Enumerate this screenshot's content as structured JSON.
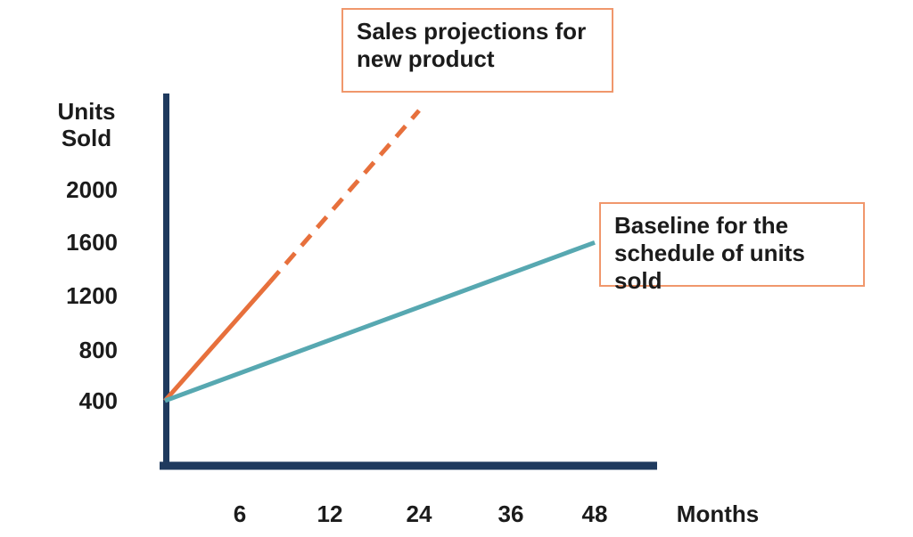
{
  "chart_data": {
    "type": "line",
    "title": "",
    "xlabel": "Months",
    "ylabel": "Units Sold",
    "x_tick_labels": [
      "6",
      "12",
      "24",
      "36",
      "48"
    ],
    "y_tick_labels": [
      "2000",
      "1600",
      "1200",
      "800",
      "400"
    ],
    "xlim_months": [
      0,
      52
    ],
    "ylim_units": [
      0,
      2700
    ],
    "grid": false,
    "legend": "none (labeled via callout boxes)",
    "x_axis_note": "tick values 6,12,24,36,48 are evenly spaced (non-linear scale)",
    "series": [
      {
        "name": "Sales projections for new product",
        "color": "#e7703c",
        "style": "solid then dashed (projection)",
        "dashed_from_point": 1,
        "points": [
          {
            "month": 0,
            "units": 400
          },
          {
            "month": 8,
            "units": 1300
          },
          {
            "month": 24,
            "units": 2600
          }
        ]
      },
      {
        "name": "Baseline for the schedule of units sold",
        "color": "#57a8b1",
        "style": "solid",
        "dashed_from_point": null,
        "points": [
          {
            "month": 0,
            "units": 400
          },
          {
            "month": 48,
            "units": 1600
          }
        ]
      }
    ]
  },
  "labels": {
    "y_axis_title_line1": "Units",
    "y_axis_title_line2": "Sold",
    "x_axis_title": "Months",
    "y_ticks": [
      "2000",
      "1600",
      "1200",
      "800",
      "400"
    ],
    "x_ticks": [
      "6",
      "12",
      "24",
      "36",
      "48"
    ]
  },
  "callouts": {
    "projection": {
      "line1": "Sales projections for",
      "line2": "new product"
    },
    "baseline": {
      "line1": "Baseline for the",
      "line2": "schedule of units sold"
    }
  },
  "colors": {
    "axis": "#1f3a5e",
    "projection_line": "#e7703c",
    "baseline_line": "#57a8b1",
    "callout_border": "#f0976c",
    "text": "#1b1b1b",
    "background": "#ffffff"
  }
}
